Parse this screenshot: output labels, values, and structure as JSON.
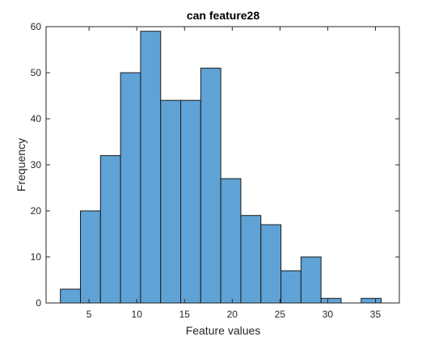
{
  "chart_data": {
    "type": "histogram",
    "title": "can feature28",
    "xlabel": "Feature values",
    "ylabel": "Frequency",
    "xlim": [
      0.5,
      37.5
    ],
    "ylim": [
      0,
      60
    ],
    "xticks": [
      5,
      10,
      15,
      20,
      25,
      30,
      35
    ],
    "yticks": [
      0,
      10,
      20,
      30,
      40,
      50,
      60
    ],
    "bin_edges": [
      2,
      4.1,
      6.2,
      8.3,
      10.4,
      12.5,
      14.6,
      16.7,
      18.8,
      20.9,
      23.0,
      25.1,
      27.2,
      29.3,
      31.4,
      33.5,
      35.6
    ],
    "counts": [
      3,
      20,
      32,
      50,
      59,
      44,
      44,
      51,
      27,
      19,
      17,
      7,
      10,
      1,
      0,
      1
    ],
    "bar_color": "#5fa3d6",
    "edge_color": "#1a1a1a",
    "grid": false,
    "box": true
  }
}
